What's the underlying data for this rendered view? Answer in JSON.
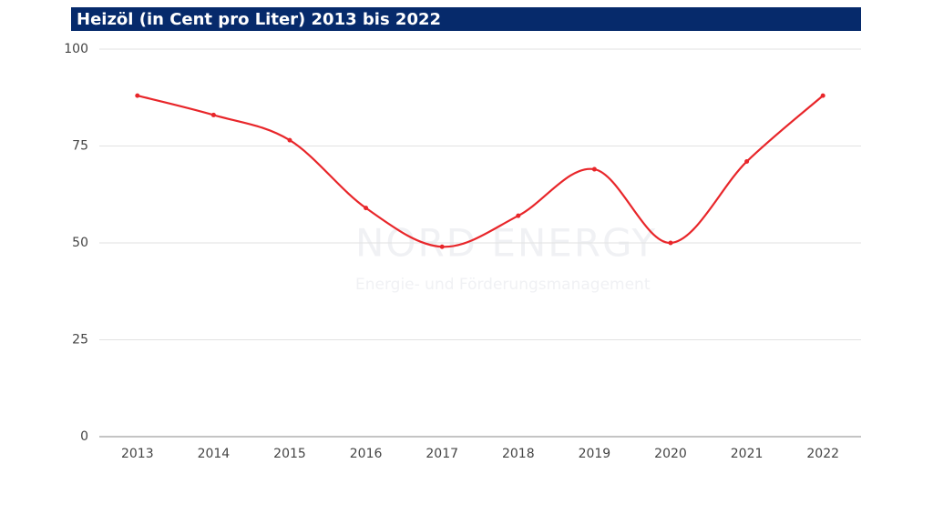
{
  "chart_data": {
    "type": "line",
    "title": "Heizöl (in Cent pro Liter) 2013 bis 2022",
    "categories": [
      "2013",
      "2014",
      "2015",
      "2016",
      "2017",
      "2018",
      "2019",
      "2020",
      "2021",
      "2022"
    ],
    "series": [
      {
        "name": "Heizöl",
        "color": "#e8262a",
        "values": [
          88,
          83,
          76.5,
          59,
          49,
          57,
          69,
          50,
          71,
          88
        ]
      }
    ],
    "ylim": [
      0,
      100
    ],
    "yticks": [
      0,
      25,
      50,
      75,
      100
    ],
    "grid": true,
    "smooth": true,
    "watermark": {
      "name": "NORD ENERGY",
      "tagline": "Energie- und Förderungsmanagement"
    }
  }
}
